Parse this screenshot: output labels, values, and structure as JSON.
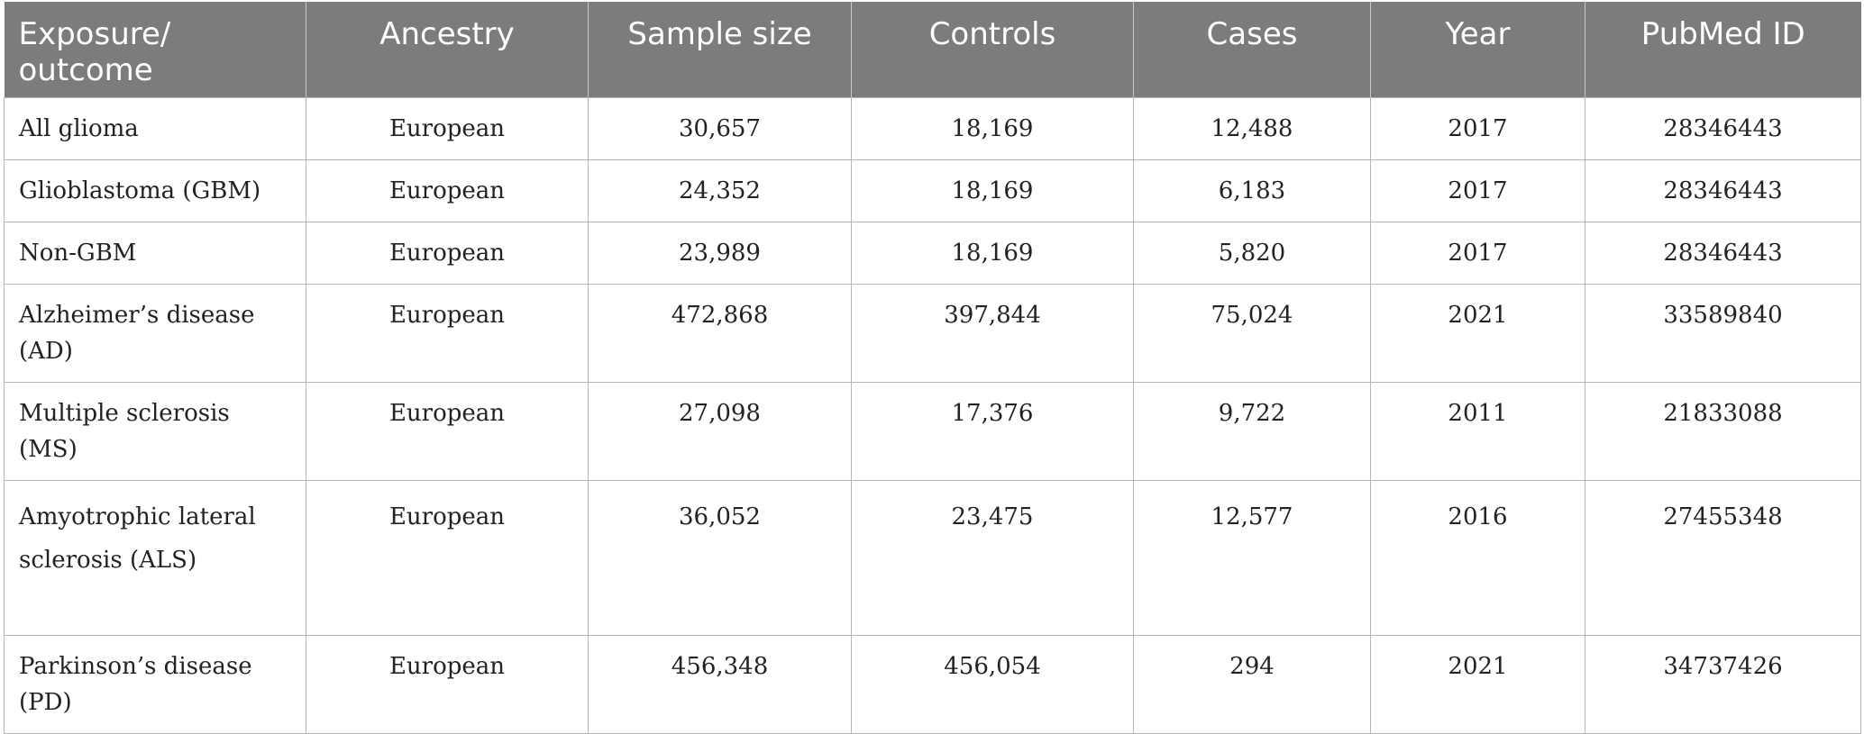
{
  "table": {
    "headers": [
      "Exposure/ outcome",
      "Ancestry",
      "Sample size",
      "Controls",
      "Cases",
      "Year",
      "PubMed ID"
    ],
    "rows": [
      [
        "All glioma",
        "European",
        "30,657",
        "18,169",
        "12,488",
        "2017",
        "28346443"
      ],
      [
        "Glioblastoma (GBM)",
        "European",
        "24,352",
        "18,169",
        "6,183",
        "2017",
        "28346443"
      ],
      [
        "Non-GBM",
        "European",
        "23,989",
        "18,169",
        "5,820",
        "2017",
        "28346443"
      ],
      [
        "Alzheimer’s disease (AD)",
        "European",
        "472,868",
        "397,844",
        "75,024",
        "2021",
        "33589840"
      ],
      [
        "Multiple sclerosis (MS)",
        "European",
        "27,098",
        "17,376",
        "9,722",
        "2011",
        "21833088"
      ],
      [
        "Amyotrophic lateral sclerosis (ALS)",
        "European",
        "36,052",
        "23,475",
        "12,577",
        "2016",
        "27455348"
      ],
      [
        "Parkinson’s disease (PD)",
        "European",
        "456,348",
        "456,054",
        "294",
        "2021",
        "34737426"
      ]
    ]
  }
}
